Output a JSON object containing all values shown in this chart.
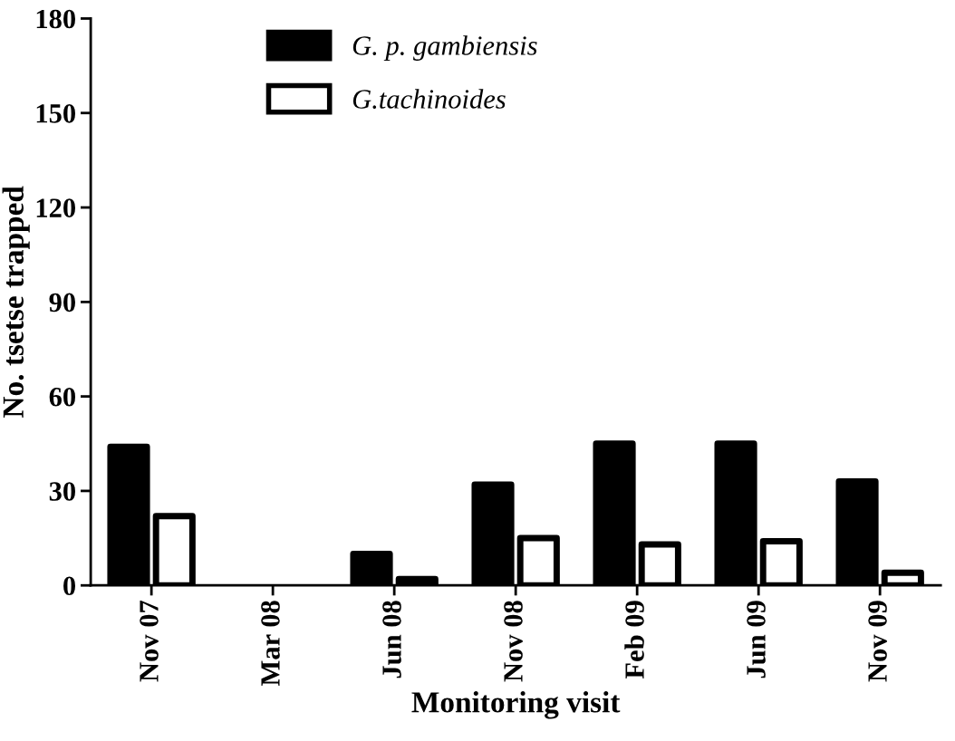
{
  "chart_data": {
    "type": "bar",
    "xlabel": "Monitoring visit",
    "ylabel": "No. tsetse trapped",
    "categories": [
      "Nov 07",
      "Mar 08",
      "Jun 08",
      "Nov 08",
      "Feb 09",
      "Jun 09",
      "Nov 09"
    ],
    "series": [
      {
        "name": "G. p. gambiensis",
        "color": "#000000",
        "values": [
          44,
          0,
          10,
          32,
          45,
          45,
          33
        ]
      },
      {
        "name": "G.tachinoides",
        "color": "#ffffff",
        "values": [
          22,
          0,
          2,
          15,
          13,
          14,
          4
        ]
      }
    ],
    "ylim": [
      0,
      180
    ],
    "yticks": [
      0,
      30,
      60,
      90,
      120,
      150,
      180
    ],
    "grid": false,
    "legend": "top left"
  }
}
